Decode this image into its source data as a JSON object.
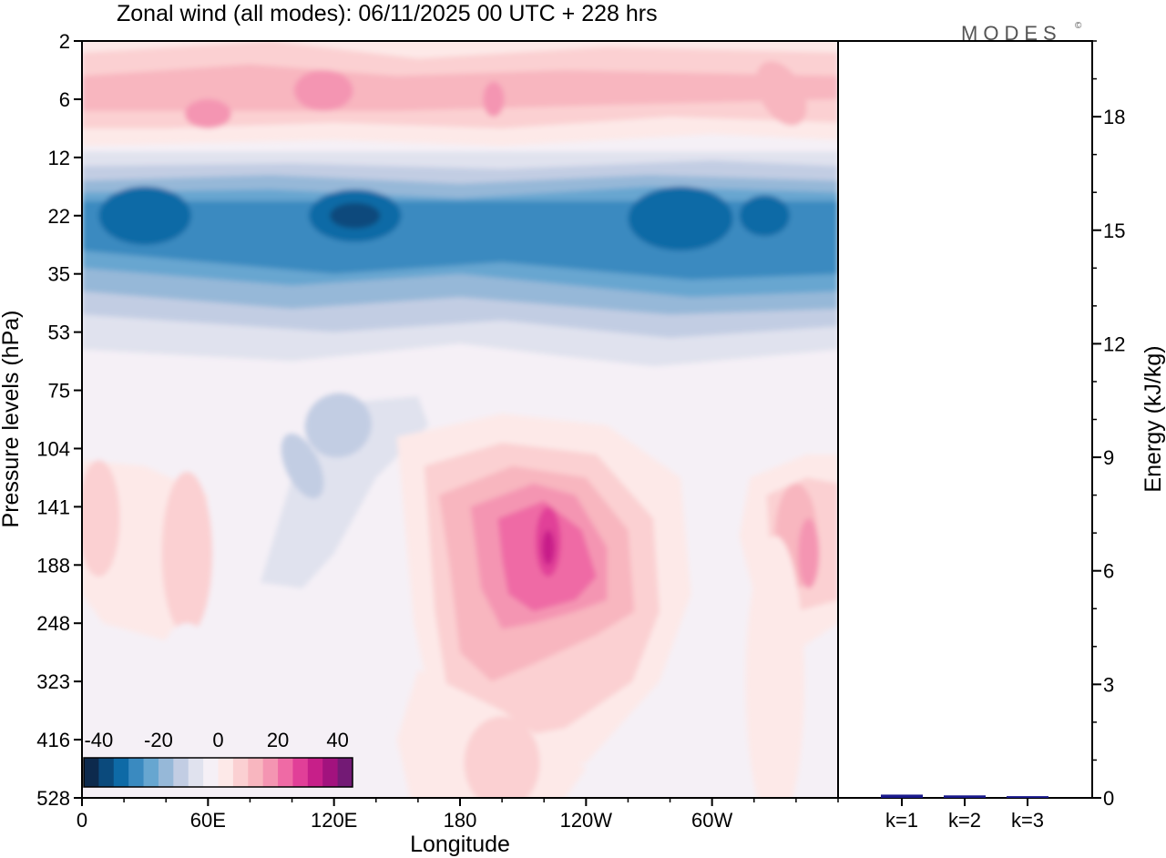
{
  "chart_data": {
    "type": "heatmap",
    "title": "Zonal wind (all modes):  06/11/2025  00 UTC  + 228 hrs",
    "brand": "MODES",
    "brand_mark": "©",
    "xlabel": "Longitude",
    "ylabel": "Pressure levels (hPa)",
    "x_ticks": [
      {
        "label": "0",
        "lon": 0
      },
      {
        "label": "60E",
        "lon": 60
      },
      {
        "label": "120E",
        "lon": 120
      },
      {
        "label": "180",
        "lon": 180
      },
      {
        "label": "120W",
        "lon": 240
      },
      {
        "label": "60W",
        "lon": 300
      }
    ],
    "xlim": [
      0,
      360
    ],
    "y_levels": [
      "2",
      "6",
      "12",
      "22",
      "35",
      "53",
      "75",
      "104",
      "141",
      "188",
      "248",
      "323",
      "416",
      "528"
    ],
    "colorbar": {
      "tick_labels": [
        "-40",
        "-20",
        "0",
        "20",
        "40"
      ],
      "tick_values": [
        -40,
        -20,
        0,
        20,
        40
      ],
      "range": [
        -45,
        45
      ],
      "step": 5,
      "colors": [
        "#0d2a4d",
        "#0b4a7c",
        "#0e6aa6",
        "#3a8ac0",
        "#67a6d0",
        "#96b8d8",
        "#c2cde3",
        "#e0e2ee",
        "#f5f0f6",
        "#fde9e8",
        "#fbd0d2",
        "#f8b6bf",
        "#f495b2",
        "#ef6aa5",
        "#e13f98",
        "#c71f89",
        "#a2127e",
        "#731a75"
      ]
    },
    "wind_field": {
      "unit": "m/s",
      "features": [
        {
          "name": "stratospheric easterlies",
          "lon_center": 180,
          "level_center": "22",
          "value": -32
        },
        {
          "name": "upper westerlies",
          "lon_center": 180,
          "level_center": "6",
          "value": 15
        },
        {
          "name": "main westerly jet",
          "lon_center": 228,
          "level_center": "141",
          "value": 35
        },
        {
          "name": "east pacific westerlies",
          "lon_center": 340,
          "level_center": "141",
          "value": 22
        },
        {
          "name": "western westerlies",
          "lon_center": 10,
          "level_center": "141",
          "value": 10
        },
        {
          "name": "weak easterlies",
          "lon_center": 120,
          "level_center": "104",
          "value": -13
        }
      ]
    },
    "energy_panel": {
      "type": "bar",
      "ylabel": "Energy (kJ/kg)",
      "categories": [
        "k=1",
        "k=2",
        "k=3"
      ],
      "values": [
        0.05,
        0.03,
        0.01
      ],
      "ylim": [
        0,
        20
      ],
      "y_ticks": [
        0,
        3,
        6,
        9,
        12,
        15,
        18
      ],
      "bar_colors": [
        "#1a1a8c",
        "#1a1a8c",
        "#1a1a8c"
      ]
    }
  }
}
